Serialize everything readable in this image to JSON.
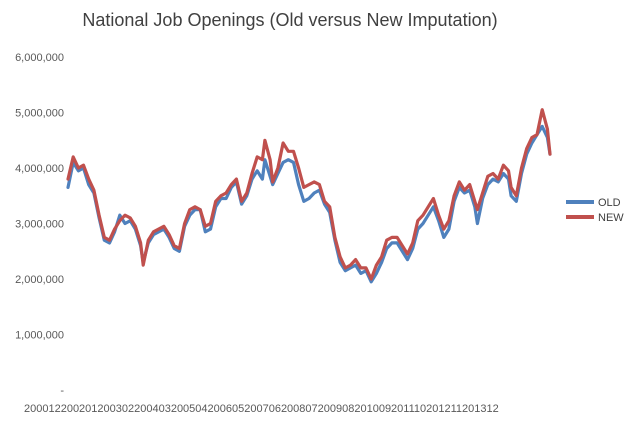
{
  "chart_data": {
    "type": "line",
    "title": "National Job Openings (Old versus New Imputation)",
    "xlabel": "",
    "ylabel": "",
    "ylim": [
      0,
      6000000
    ],
    "y_ticks": [
      0,
      1000000,
      2000000,
      3000000,
      4000000,
      5000000,
      6000000
    ],
    "y_tick_labels": [
      "-",
      "1,000,000",
      "2,000,000",
      "3,000,000",
      "4,000,000",
      "5,000,000",
      "6,000,000"
    ],
    "x_tick_labels": [
      "200012",
      "200201",
      "200302",
      "200403",
      "200504",
      "200605",
      "200706",
      "200807",
      "200908",
      "201009",
      "201110",
      "201211",
      "201312"
    ],
    "x_tick_text": "200012200201200302200403200504200605200706200807200908201009201110201211201312",
    "legend_position": "right",
    "colors": {
      "old": "#4f81bd",
      "new": "#c0504d"
    },
    "x_count": 174,
    "series": [
      {
        "name": "OLD",
        "knots": [
          [
            0,
            3650000
          ],
          [
            2,
            4100000
          ],
          [
            4,
            3950000
          ],
          [
            6,
            4000000
          ],
          [
            8,
            3700000
          ],
          [
            10,
            3550000
          ],
          [
            12,
            3100000
          ],
          [
            14,
            2700000
          ],
          [
            16,
            2650000
          ],
          [
            18,
            2850000
          ],
          [
            20,
            3150000
          ],
          [
            22,
            3000000
          ],
          [
            24,
            3050000
          ],
          [
            26,
            2900000
          ],
          [
            28,
            2600000
          ],
          [
            29,
            2300000
          ],
          [
            31,
            2650000
          ],
          [
            33,
            2800000
          ],
          [
            35,
            2850000
          ],
          [
            37,
            2900000
          ],
          [
            39,
            2750000
          ],
          [
            41,
            2550000
          ],
          [
            43,
            2500000
          ],
          [
            45,
            2950000
          ],
          [
            47,
            3150000
          ],
          [
            49,
            3250000
          ],
          [
            51,
            3250000
          ],
          [
            53,
            2850000
          ],
          [
            55,
            2900000
          ],
          [
            57,
            3300000
          ],
          [
            59,
            3450000
          ],
          [
            61,
            3450000
          ],
          [
            63,
            3650000
          ],
          [
            65,
            3750000
          ],
          [
            67,
            3350000
          ],
          [
            69,
            3500000
          ],
          [
            71,
            3800000
          ],
          [
            73,
            3950000
          ],
          [
            75,
            3800000
          ],
          [
            76,
            4150000
          ],
          [
            78,
            3850000
          ],
          [
            79,
            3700000
          ],
          [
            81,
            3900000
          ],
          [
            83,
            4100000
          ],
          [
            85,
            4150000
          ],
          [
            87,
            4100000
          ],
          [
            89,
            3700000
          ],
          [
            91,
            3400000
          ],
          [
            93,
            3450000
          ],
          [
            95,
            3550000
          ],
          [
            97,
            3600000
          ],
          [
            99,
            3350000
          ],
          [
            101,
            3200000
          ],
          [
            103,
            2700000
          ],
          [
            105,
            2300000
          ],
          [
            107,
            2150000
          ],
          [
            109,
            2200000
          ],
          [
            111,
            2250000
          ],
          [
            113,
            2100000
          ],
          [
            115,
            2150000
          ],
          [
            117,
            1950000
          ],
          [
            119,
            2100000
          ],
          [
            121,
            2300000
          ],
          [
            123,
            2550000
          ],
          [
            125,
            2650000
          ],
          [
            127,
            2650000
          ],
          [
            129,
            2500000
          ],
          [
            131,
            2350000
          ],
          [
            133,
            2550000
          ],
          [
            135,
            2900000
          ],
          [
            137,
            3000000
          ],
          [
            139,
            3150000
          ],
          [
            141,
            3300000
          ],
          [
            143,
            3050000
          ],
          [
            145,
            2750000
          ],
          [
            147,
            2900000
          ],
          [
            149,
            3400000
          ],
          [
            151,
            3650000
          ],
          [
            153,
            3550000
          ],
          [
            155,
            3600000
          ],
          [
            157,
            3300000
          ],
          [
            158,
            3000000
          ],
          [
            160,
            3450000
          ],
          [
            162,
            3700000
          ],
          [
            164,
            3800000
          ],
          [
            166,
            3750000
          ],
          [
            168,
            3900000
          ],
          [
            170,
            3800000
          ],
          [
            171,
            3500000
          ],
          [
            173,
            3400000
          ],
          [
            175,
            3900000
          ],
          [
            177,
            4250000
          ],
          [
            179,
            4450000
          ],
          [
            181,
            4600000
          ],
          [
            183,
            4750000
          ],
          [
            185,
            4550000
          ],
          [
            186,
            4250000
          ]
        ]
      },
      {
        "name": "NEW",
        "knots": [
          [
            0,
            3800000
          ],
          [
            2,
            4200000
          ],
          [
            4,
            4000000
          ],
          [
            6,
            4050000
          ],
          [
            8,
            3800000
          ],
          [
            10,
            3600000
          ],
          [
            12,
            3150000
          ],
          [
            14,
            2750000
          ],
          [
            16,
            2700000
          ],
          [
            18,
            2900000
          ],
          [
            20,
            3050000
          ],
          [
            22,
            3150000
          ],
          [
            24,
            3100000
          ],
          [
            26,
            2950000
          ],
          [
            28,
            2650000
          ],
          [
            29,
            2250000
          ],
          [
            31,
            2700000
          ],
          [
            33,
            2850000
          ],
          [
            35,
            2900000
          ],
          [
            37,
            2950000
          ],
          [
            39,
            2800000
          ],
          [
            41,
            2600000
          ],
          [
            43,
            2550000
          ],
          [
            45,
            3000000
          ],
          [
            47,
            3250000
          ],
          [
            49,
            3300000
          ],
          [
            51,
            3250000
          ],
          [
            53,
            2950000
          ],
          [
            55,
            3000000
          ],
          [
            57,
            3400000
          ],
          [
            59,
            3500000
          ],
          [
            61,
            3550000
          ],
          [
            63,
            3700000
          ],
          [
            65,
            3800000
          ],
          [
            67,
            3400000
          ],
          [
            69,
            3550000
          ],
          [
            71,
            3900000
          ],
          [
            73,
            4200000
          ],
          [
            75,
            4150000
          ],
          [
            76,
            4500000
          ],
          [
            78,
            4150000
          ],
          [
            79,
            3750000
          ],
          [
            81,
            4000000
          ],
          [
            83,
            4450000
          ],
          [
            85,
            4300000
          ],
          [
            87,
            4300000
          ],
          [
            89,
            4000000
          ],
          [
            91,
            3650000
          ],
          [
            93,
            3700000
          ],
          [
            95,
            3750000
          ],
          [
            97,
            3700000
          ],
          [
            99,
            3400000
          ],
          [
            101,
            3300000
          ],
          [
            103,
            2750000
          ],
          [
            105,
            2400000
          ],
          [
            107,
            2200000
          ],
          [
            109,
            2250000
          ],
          [
            111,
            2350000
          ],
          [
            113,
            2200000
          ],
          [
            115,
            2200000
          ],
          [
            117,
            2000000
          ],
          [
            119,
            2250000
          ],
          [
            121,
            2400000
          ],
          [
            123,
            2700000
          ],
          [
            125,
            2750000
          ],
          [
            127,
            2750000
          ],
          [
            129,
            2600000
          ],
          [
            131,
            2450000
          ],
          [
            133,
            2650000
          ],
          [
            135,
            3050000
          ],
          [
            137,
            3150000
          ],
          [
            139,
            3300000
          ],
          [
            141,
            3450000
          ],
          [
            143,
            3150000
          ],
          [
            145,
            2900000
          ],
          [
            147,
            3050000
          ],
          [
            149,
            3500000
          ],
          [
            151,
            3750000
          ],
          [
            153,
            3600000
          ],
          [
            155,
            3700000
          ],
          [
            157,
            3400000
          ],
          [
            158,
            3250000
          ],
          [
            160,
            3550000
          ],
          [
            162,
            3850000
          ],
          [
            164,
            3900000
          ],
          [
            166,
            3800000
          ],
          [
            168,
            4050000
          ],
          [
            170,
            3950000
          ],
          [
            171,
            3650000
          ],
          [
            173,
            3500000
          ],
          [
            175,
            4000000
          ],
          [
            177,
            4350000
          ],
          [
            179,
            4550000
          ],
          [
            181,
            4600000
          ],
          [
            183,
            5050000
          ],
          [
            185,
            4700000
          ],
          [
            186,
            4250000
          ]
        ]
      }
    ]
  }
}
